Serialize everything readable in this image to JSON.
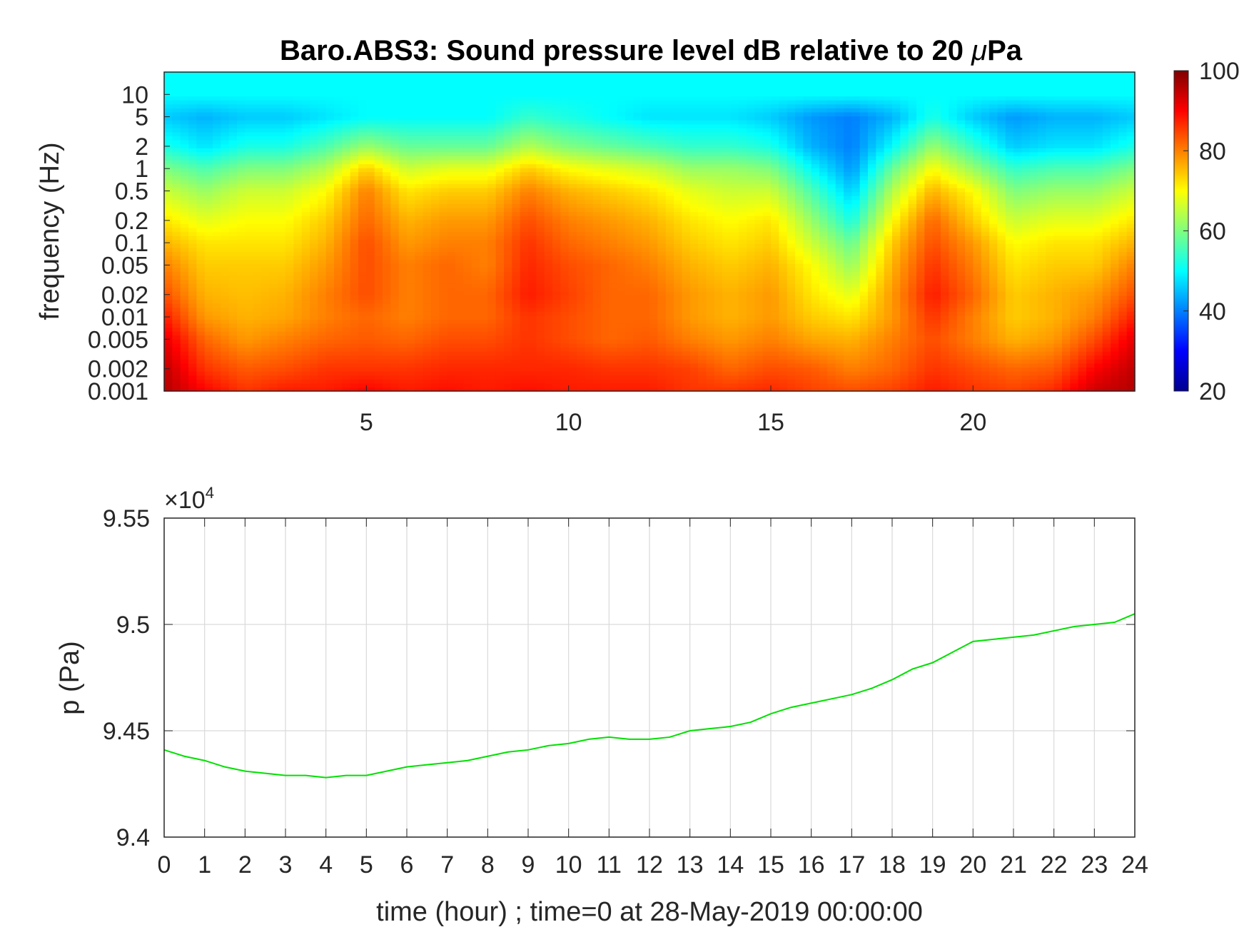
{
  "chart_data": [
    {
      "type": "heatmap",
      "title": "Baro.ABS3: Sound pressure level dB relative to 20 μPa",
      "title_prefix": "Baro.ABS3: Sound pressure level dB relative to 20 ",
      "title_mu": "μ",
      "title_suffix": "Pa",
      "ylabel": "frequency (Hz)",
      "xlabel": "",
      "x_range": [
        0,
        24
      ],
      "x_ticks": [
        5,
        10,
        15,
        20
      ],
      "y_scale": "log",
      "y_range": [
        0.001,
        20
      ],
      "y_ticks": [
        10,
        5,
        2,
        1,
        0.5,
        0.2,
        0.1,
        0.05,
        0.02,
        0.01,
        0.005,
        0.002,
        0.001
      ],
      "colormap": "jet",
      "colorbar": {
        "min": 20,
        "max": 100,
        "ticks": [
          100,
          80,
          60,
          40,
          20
        ]
      },
      "x_time_hour": [
        0,
        1,
        2,
        3,
        4,
        5,
        6,
        7,
        8,
        9,
        10,
        11,
        12,
        13,
        14,
        15,
        16,
        17,
        18,
        19,
        20,
        21,
        22,
        23,
        24
      ],
      "y_frequency_hz": [
        0.001,
        0.002,
        0.005,
        0.01,
        0.02,
        0.05,
        0.1,
        0.2,
        0.5,
        1,
        2,
        5,
        10,
        20
      ],
      "spl_db": [
        [
          96,
          90,
          86,
          88,
          88,
          90,
          88,
          89,
          88,
          89,
          88,
          88,
          88,
          86,
          86,
          87,
          85,
          84,
          85,
          88,
          86,
          85,
          87,
          94,
          96
        ],
        [
          95,
          86,
          83,
          84,
          86,
          86,
          86,
          87,
          87,
          87,
          87,
          86,
          86,
          85,
          82,
          84,
          83,
          80,
          82,
          86,
          84,
          82,
          83,
          90,
          95
        ],
        [
          92,
          82,
          78,
          80,
          82,
          83,
          82,
          84,
          84,
          86,
          84,
          82,
          83,
          80,
          78,
          80,
          77,
          76,
          80,
          84,
          80,
          76,
          78,
          84,
          92
        ],
        [
          88,
          78,
          76,
          77,
          80,
          82,
          80,
          82,
          82,
          86,
          84,
          82,
          82,
          78,
          76,
          78,
          74,
          72,
          78,
          86,
          80,
          74,
          76,
          80,
          88
        ],
        [
          84,
          76,
          75,
          76,
          80,
          84,
          80,
          82,
          82,
          88,
          85,
          82,
          82,
          78,
          76,
          78,
          72,
          68,
          78,
          88,
          82,
          74,
          76,
          78,
          84
        ],
        [
          80,
          74,
          74,
          74,
          78,
          84,
          80,
          82,
          80,
          87,
          84,
          82,
          80,
          76,
          74,
          76,
          70,
          62,
          76,
          86,
          80,
          72,
          74,
          74,
          80
        ],
        [
          76,
          72,
          72,
          72,
          76,
          84,
          78,
          80,
          80,
          86,
          82,
          80,
          78,
          74,
          72,
          74,
          66,
          58,
          74,
          84,
          78,
          70,
          72,
          72,
          76
        ],
        [
          72,
          68,
          70,
          70,
          74,
          82,
          76,
          78,
          78,
          84,
          80,
          78,
          76,
          72,
          70,
          72,
          62,
          52,
          70,
          82,
          74,
          66,
          68,
          68,
          72
        ],
        [
          66,
          62,
          66,
          66,
          70,
          80,
          72,
          74,
          74,
          80,
          76,
          74,
          72,
          68,
          66,
          66,
          56,
          46,
          64,
          76,
          70,
          60,
          62,
          62,
          66
        ],
        [
          60,
          56,
          60,
          60,
          64,
          74,
          66,
          68,
          68,
          74,
          70,
          68,
          66,
          62,
          62,
          60,
          50,
          42,
          58,
          70,
          62,
          54,
          56,
          56,
          60
        ],
        [
          52,
          48,
          52,
          52,
          56,
          62,
          58,
          58,
          58,
          64,
          60,
          58,
          56,
          54,
          54,
          52,
          44,
          40,
          50,
          62,
          54,
          46,
          48,
          48,
          52
        ],
        [
          46,
          44,
          46,
          46,
          48,
          50,
          50,
          50,
          50,
          54,
          52,
          50,
          48,
          48,
          48,
          46,
          42,
          40,
          44,
          52,
          46,
          42,
          44,
          44,
          46
        ],
        [
          50,
          50,
          50,
          50,
          50,
          50,
          50,
          50,
          50,
          50,
          50,
          50,
          50,
          50,
          50,
          50,
          50,
          50,
          50,
          50,
          50,
          50,
          50,
          50,
          50
        ],
        [
          50,
          50,
          50,
          50,
          50,
          50,
          50,
          50,
          50,
          50,
          50,
          50,
          50,
          50,
          50,
          50,
          50,
          50,
          50,
          50,
          50,
          50,
          50,
          50,
          50
        ]
      ]
    },
    {
      "type": "line",
      "title": "",
      "xlabel": "time (hour) ; time=0 at 28-May-2019 00:00:00",
      "ylabel": "p (Pa)",
      "y_multiplier_base": "×10",
      "y_multiplier_exp": "4",
      "x_range": [
        0,
        24
      ],
      "y_range": [
        9.4,
        9.55
      ],
      "x_ticks": [
        0,
        1,
        2,
        3,
        4,
        5,
        6,
        7,
        8,
        9,
        10,
        11,
        12,
        13,
        14,
        15,
        16,
        17,
        18,
        19,
        20,
        21,
        22,
        23,
        24
      ],
      "y_ticks": [
        9.4,
        9.45,
        9.5,
        9.55
      ],
      "grid": true,
      "line_color": "#00e000",
      "x": [
        0,
        0.5,
        1,
        1.5,
        2,
        2.5,
        3,
        3.5,
        4,
        4.5,
        5,
        5.5,
        6,
        6.5,
        7,
        7.5,
        8,
        8.5,
        9,
        9.5,
        10,
        10.5,
        11,
        11.5,
        12,
        12.5,
        13,
        13.5,
        14,
        14.5,
        15,
        15.5,
        16,
        16.5,
        17,
        17.5,
        18,
        18.5,
        19,
        19.5,
        20,
        20.5,
        21,
        21.5,
        22,
        22.5,
        23,
        23.5,
        24
      ],
      "y": [
        9.441,
        9.438,
        9.436,
        9.433,
        9.431,
        9.43,
        9.429,
        9.429,
        9.428,
        9.429,
        9.429,
        9.431,
        9.433,
        9.434,
        9.435,
        9.436,
        9.438,
        9.44,
        9.441,
        9.443,
        9.444,
        9.446,
        9.447,
        9.446,
        9.446,
        9.447,
        9.45,
        9.451,
        9.452,
        9.454,
        9.458,
        9.461,
        9.463,
        9.465,
        9.467,
        9.47,
        9.474,
        9.479,
        9.482,
        9.487,
        9.492,
        9.493,
        9.494,
        9.495,
        9.497,
        9.499,
        9.5,
        9.501,
        9.505
      ]
    }
  ]
}
